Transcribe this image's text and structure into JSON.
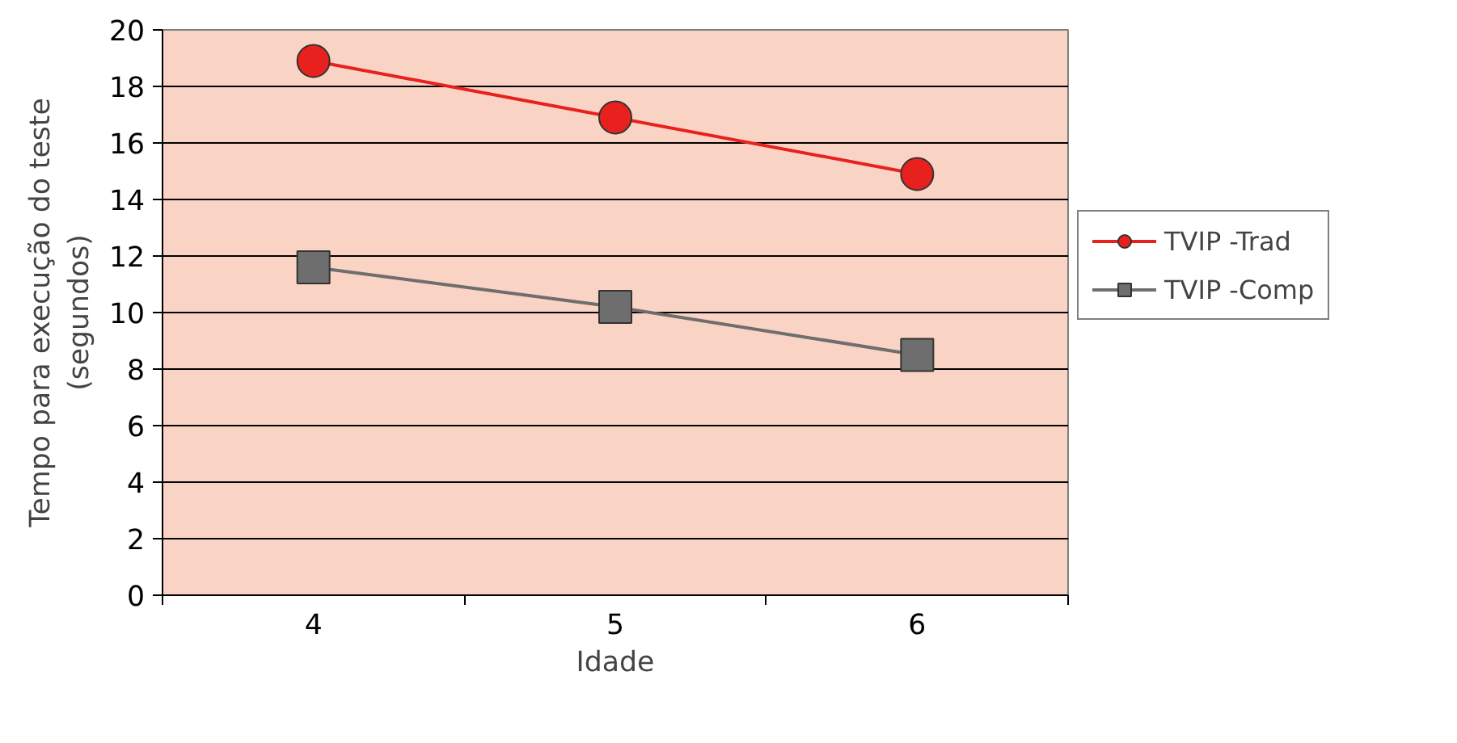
{
  "chart_data": {
    "type": "line",
    "xlabel": "Idade",
    "ylabel": "Tempo para execução do teste\n(segundos)",
    "categories": [
      "4",
      "5",
      "6"
    ],
    "series": [
      {
        "name": "TVIP -Trad",
        "color": "#e8211f",
        "marker": "circle",
        "values": [
          18.9,
          16.9,
          14.9
        ]
      },
      {
        "name": "TVIP -Comp",
        "color": "#6e6e6e",
        "marker": "square",
        "values": [
          11.6,
          10.2,
          8.5
        ]
      }
    ],
    "ylim": [
      0,
      20
    ],
    "yticks": [
      0,
      2,
      4,
      6,
      8,
      10,
      12,
      14,
      16,
      18,
      20
    ],
    "grid": "y",
    "legend": "right"
  }
}
